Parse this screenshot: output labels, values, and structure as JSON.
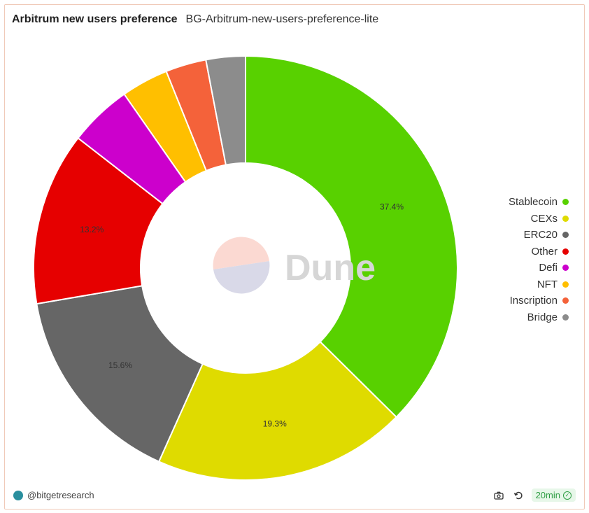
{
  "header": {
    "title": "Arbitrum new users preference",
    "subtitle": "BG-Arbitrum-new-users-preference-lite"
  },
  "watermark": {
    "text": "Dune"
  },
  "footer": {
    "author": "@bitgetresearch",
    "refresh": "20min",
    "camera_icon": "camera-icon",
    "refresh_icon": "refresh-icon",
    "check_icon": "check-circle-icon"
  },
  "chart_data": {
    "type": "pie",
    "donut": true,
    "legend_position": "right",
    "slices": [
      {
        "label": "Stablecoin",
        "value": 37.4,
        "display": "37.4%",
        "color": "#58d100"
      },
      {
        "label": "CEXs",
        "value": 19.3,
        "display": "19.3%",
        "color": "#dfdb00"
      },
      {
        "label": "ERC20",
        "value": 15.6,
        "display": "15.6%",
        "color": "#666666"
      },
      {
        "label": "Other",
        "value": 13.2,
        "display": "13.2%",
        "color": "#e60000"
      },
      {
        "label": "Defi",
        "value": 4.8,
        "display": "",
        "color": "#cc00cc"
      },
      {
        "label": "NFT",
        "value": 3.6,
        "display": "",
        "color": "#ffbf00"
      },
      {
        "label": "Inscription",
        "value": 3.1,
        "display": "",
        "color": "#f4623a"
      },
      {
        "label": "Bridge",
        "value": 3.0,
        "display": "",
        "color": "#8c8c8c"
      }
    ]
  }
}
